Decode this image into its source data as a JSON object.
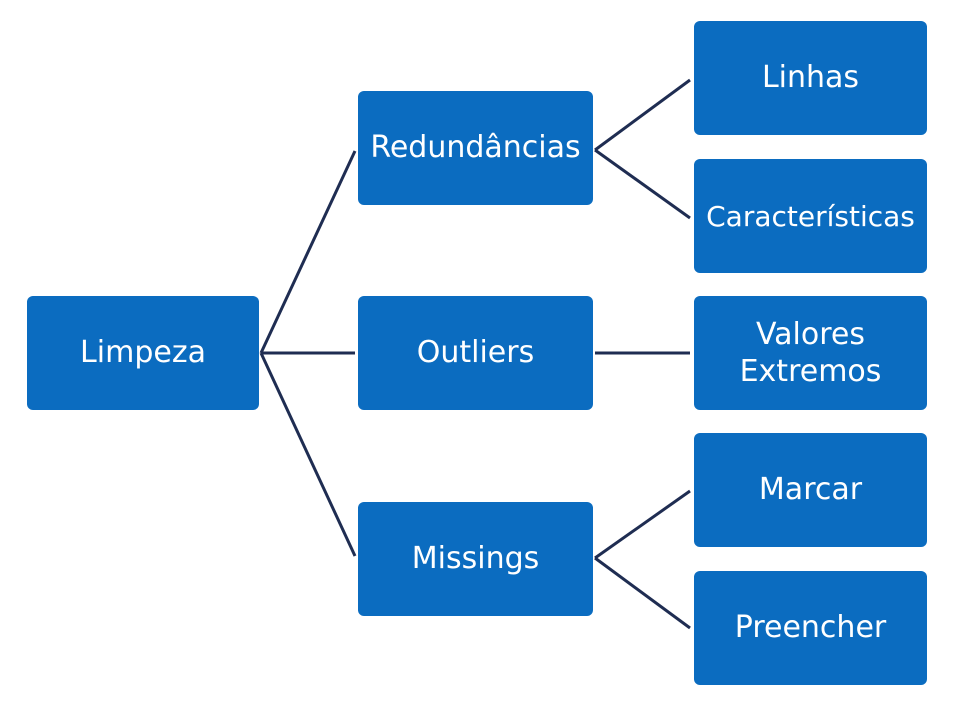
{
  "colors": {
    "node_fill": "#0b6cc0",
    "node_text": "#ffffff",
    "connector": "#1f2d52",
    "background": "#ffffff"
  },
  "diagram": {
    "root": "Limpeza",
    "level1": [
      "Redundâncias",
      "Outliers",
      "Missings"
    ],
    "level2": {
      "redundancias": [
        "Linhas",
        "Características"
      ],
      "outliers": [
        "Valores",
        "Extremos"
      ],
      "missings": [
        "Marcar",
        "Preencher"
      ]
    }
  }
}
